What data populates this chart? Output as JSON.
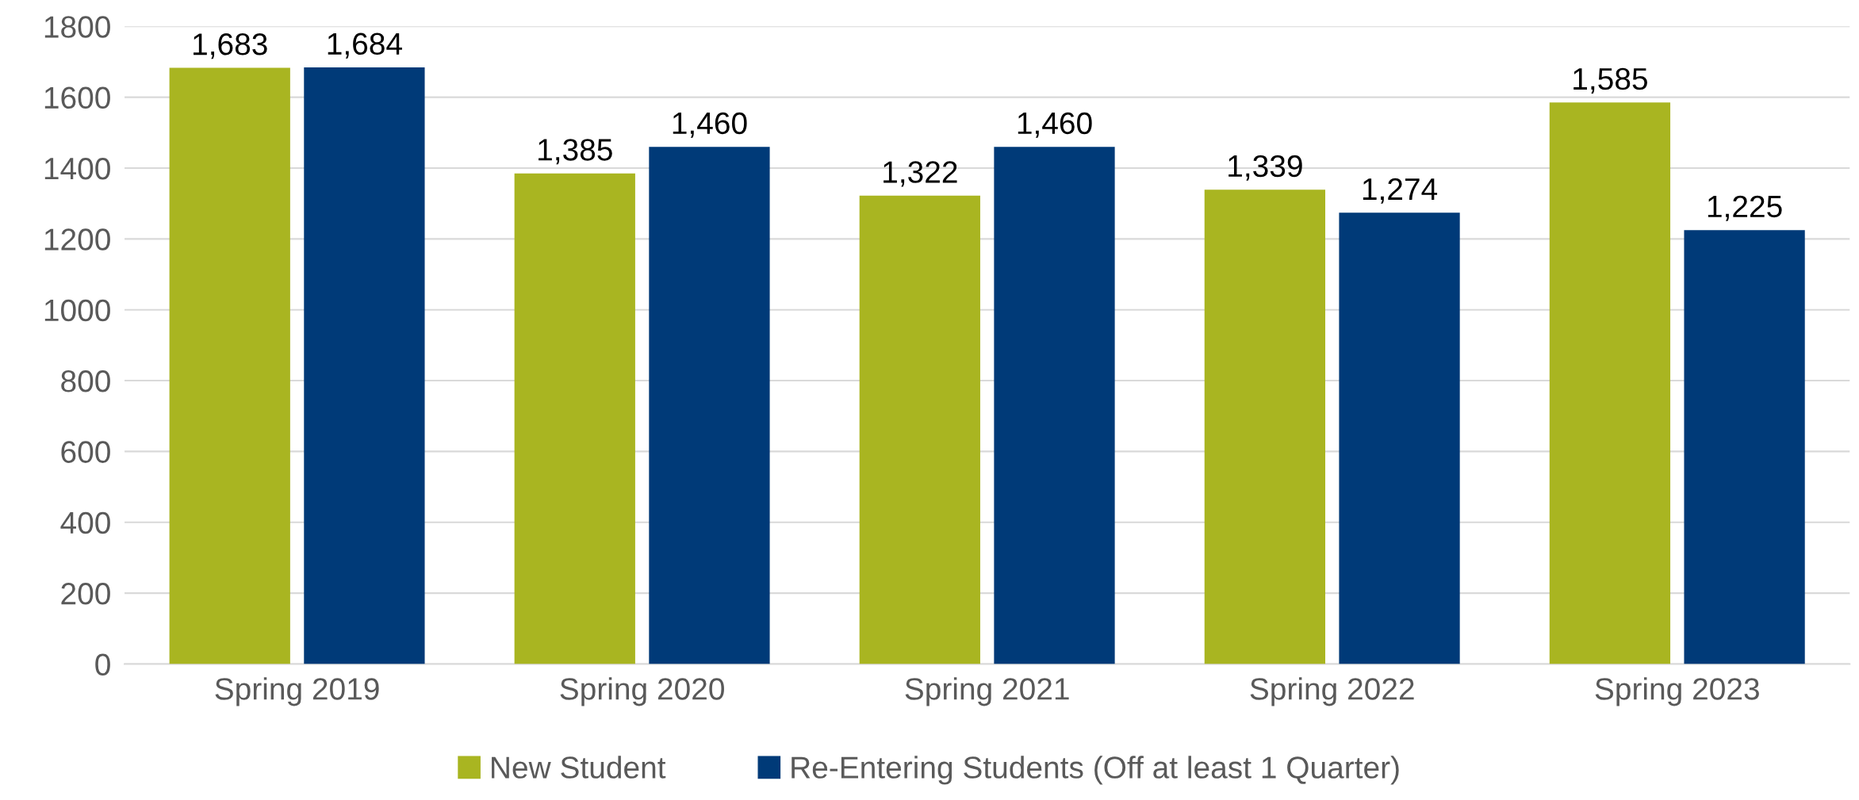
{
  "chart_data": {
    "type": "bar",
    "categories": [
      "Spring 2019",
      "Spring 2020",
      "Spring 2021",
      "Spring 2022",
      "Spring 2023"
    ],
    "series": [
      {
        "name": "New Student",
        "color": "#a9b521",
        "values": [
          1683,
          1385,
          1322,
          1339,
          1585
        ],
        "value_labels": [
          "1,683",
          "1,385",
          "1,322",
          "1,339",
          "1,585"
        ]
      },
      {
        "name": "Re-Entering Students (Off at least 1 Quarter)",
        "color": "#003a78",
        "values": [
          1684,
          1460,
          1460,
          1274,
          1225
        ],
        "value_labels": [
          "1,684",
          "1,460",
          "1,460",
          "1,274",
          "1,225"
        ]
      }
    ],
    "ylim": [
      0,
      1800
    ],
    "yticks": [
      0,
      200,
      400,
      600,
      800,
      1000,
      1200,
      1400,
      1600,
      1800
    ],
    "grid": "y",
    "legend": "bottom"
  }
}
